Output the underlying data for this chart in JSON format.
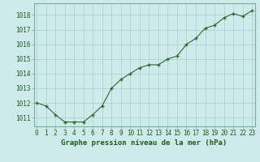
{
  "x": [
    0,
    1,
    2,
    3,
    4,
    5,
    6,
    7,
    8,
    9,
    10,
    11,
    12,
    13,
    14,
    15,
    16,
    17,
    18,
    19,
    20,
    21,
    22,
    23
  ],
  "y": [
    1012.0,
    1011.8,
    1011.2,
    1010.7,
    1010.7,
    1010.7,
    1011.2,
    1011.8,
    1013.0,
    1013.6,
    1014.0,
    1014.4,
    1014.6,
    1014.6,
    1015.0,
    1015.2,
    1016.0,
    1016.4,
    1017.1,
    1017.3,
    1017.8,
    1018.1,
    1017.9,
    1018.3
  ],
  "line_color": "#2d6a2d",
  "marker_color": "#2d6a2d",
  "bg_color": "#ceeaea",
  "grid_color": "#b0d8d8",
  "label_color": "#1a5c1a",
  "xlabel": "Graphe pression niveau de la mer (hPa)",
  "ylim_min": 1010.4,
  "ylim_max": 1018.8,
  "xlim_min": -0.3,
  "xlim_max": 23.3,
  "yticks": [
    1011,
    1012,
    1013,
    1014,
    1015,
    1016,
    1017,
    1018
  ],
  "xticks": [
    0,
    1,
    2,
    3,
    4,
    5,
    6,
    7,
    8,
    9,
    10,
    11,
    12,
    13,
    14,
    15,
    16,
    17,
    18,
    19,
    20,
    21,
    22,
    23
  ],
  "tick_fontsize": 5.5,
  "xlabel_fontsize": 6.5
}
